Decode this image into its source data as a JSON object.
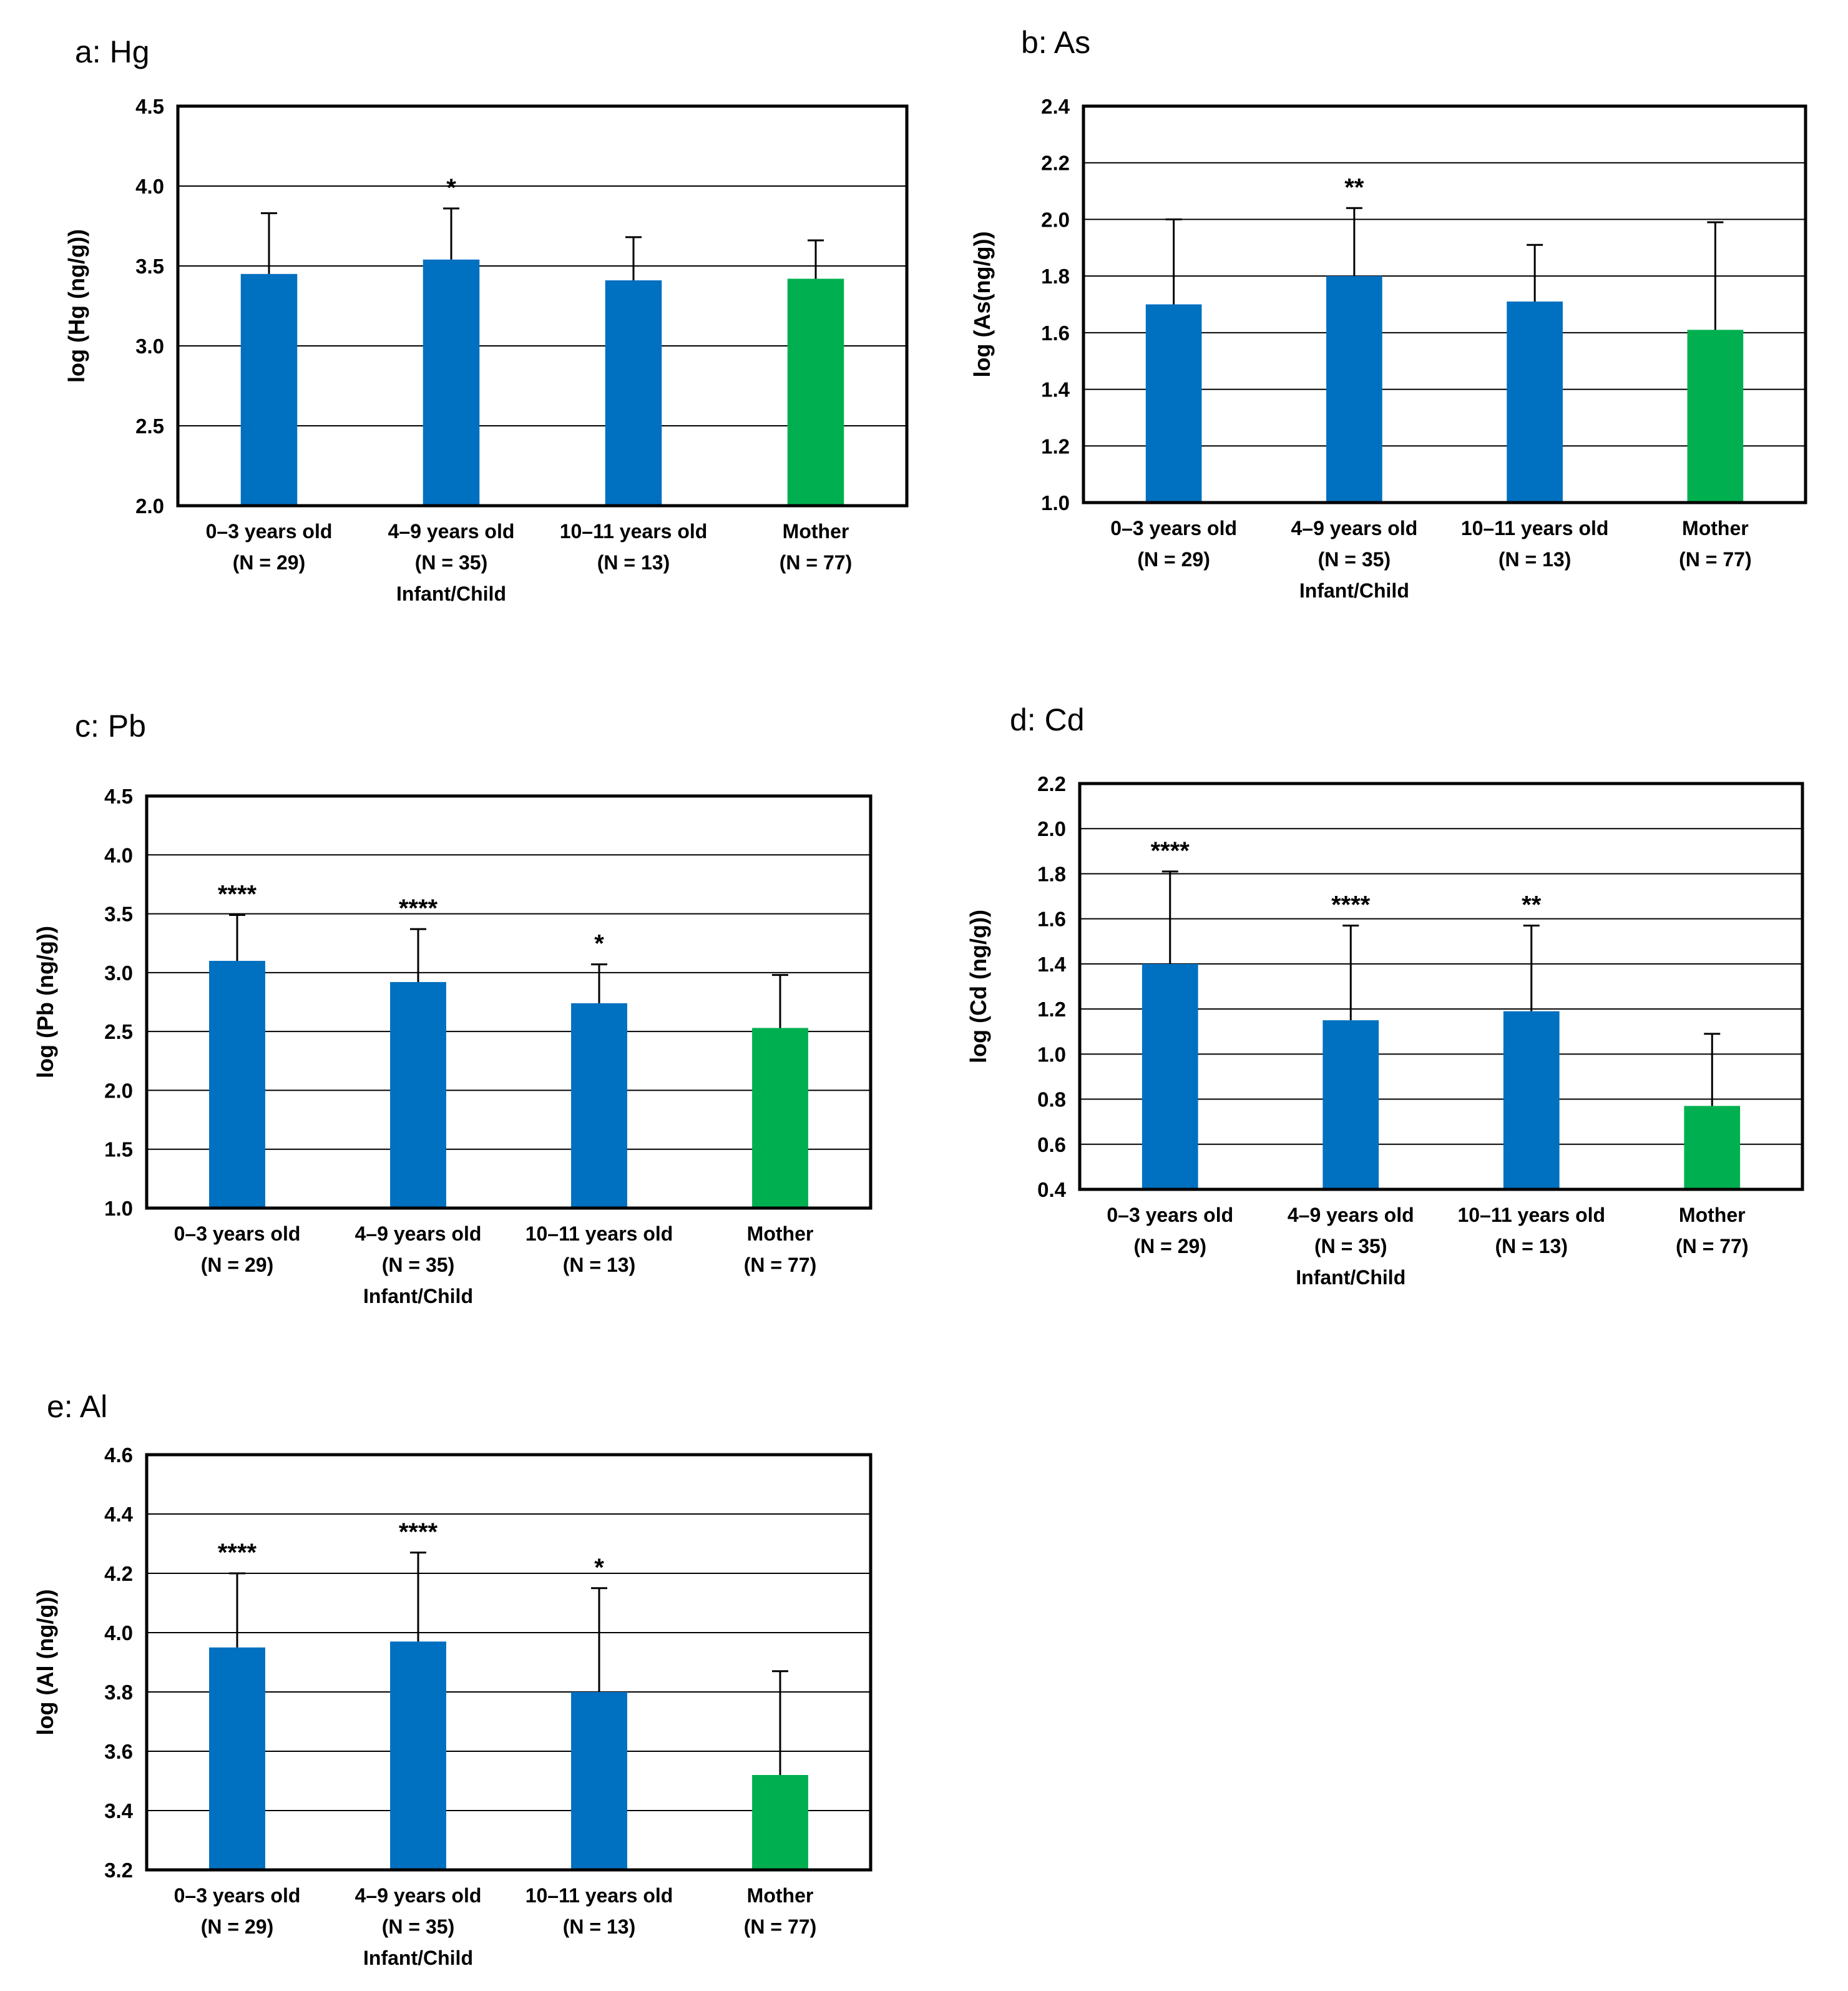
{
  "figure": {
    "group_label": "Infant/Child",
    "colors": {
      "child": "#0070C0",
      "mother": "#00B050",
      "error_bar": "#000000",
      "grid": "#000000"
    }
  },
  "chart_data": [
    {
      "id": "hg",
      "type": "bar",
      "title": "a: Hg",
      "ylabel": "log (Hg (ng/g))",
      "ylim": [
        2.0,
        4.5
      ],
      "yticks": [
        "2.0",
        "2.5",
        "3.0",
        "3.5",
        "4.0",
        "4.5"
      ],
      "categories": [
        {
          "label": "0–3 years old",
          "n": "(N = 29)"
        },
        {
          "label": "4–9 years old",
          "n": "(N = 35)"
        },
        {
          "label": "10–11 years old",
          "n": "(N = 13)"
        },
        {
          "label": "Mother",
          "n": "(N = 77)"
        }
      ],
      "values": [
        3.45,
        3.54,
        3.41,
        3.42
      ],
      "errors": [
        0.38,
        0.32,
        0.27,
        0.24
      ],
      "significance": [
        "",
        "*",
        "",
        ""
      ],
      "group_label": "Infant/Child"
    },
    {
      "id": "as",
      "type": "bar",
      "title": "b: As",
      "ylabel": "log (As(ng/g))",
      "ylim": [
        1.0,
        2.4
      ],
      "yticks": [
        "1.0",
        "1.2",
        "1.4",
        "1.6",
        "1.8",
        "2.0",
        "2.2",
        "2.4"
      ],
      "categories": [
        {
          "label": "0–3 years old",
          "n": "(N = 29)"
        },
        {
          "label": "4–9 years old",
          "n": "(N = 35)"
        },
        {
          "label": "10–11 years old",
          "n": "(N = 13)"
        },
        {
          "label": "Mother",
          "n": "(N = 77)"
        }
      ],
      "values": [
        1.7,
        1.8,
        1.71,
        1.61
      ],
      "errors": [
        0.3,
        0.24,
        0.2,
        0.38
      ],
      "significance": [
        "",
        "**",
        "",
        ""
      ],
      "group_label": "Infant/Child"
    },
    {
      "id": "pb",
      "type": "bar",
      "title": "c: Pb",
      "ylabel": "log (Pb (ng/g))",
      "ylim": [
        1.0,
        4.5
      ],
      "yticks": [
        "1.0",
        "1.5",
        "2.0",
        "2.5",
        "3.0",
        "3.5",
        "4.0",
        "4.5"
      ],
      "categories": [
        {
          "label": "0–3 years old",
          "n": "(N = 29)"
        },
        {
          "label": "4–9 years old",
          "n": "(N = 35)"
        },
        {
          "label": "10–11 years old",
          "n": "(N = 13)"
        },
        {
          "label": "Mother",
          "n": "(N = 77)"
        }
      ],
      "values": [
        3.1,
        2.92,
        2.74,
        2.53
      ],
      "errors": [
        0.39,
        0.45,
        0.33,
        0.45
      ],
      "significance": [
        "****",
        "****",
        "*",
        ""
      ],
      "group_label": "Infant/Child"
    },
    {
      "id": "cd",
      "type": "bar",
      "title": "d: Cd",
      "ylabel": "log (Cd (ng/g))",
      "ylim": [
        0.4,
        2.2
      ],
      "yticks": [
        "0.4",
        "0.6",
        "0.8",
        "1.0",
        "1.2",
        "1.4",
        "1.6",
        "1.8",
        "2.0",
        "2.2"
      ],
      "categories": [
        {
          "label": "0–3 years old",
          "n": "(N = 29)"
        },
        {
          "label": "4–9 years old",
          "n": "(N = 35)"
        },
        {
          "label": "10–11 years old",
          "n": "(N = 13)"
        },
        {
          "label": "Mother",
          "n": "(N = 77)"
        }
      ],
      "values": [
        1.4,
        1.15,
        1.19,
        0.77
      ],
      "errors": [
        0.41,
        0.42,
        0.38,
        0.32
      ],
      "significance": [
        "****",
        "****",
        "**",
        ""
      ],
      "group_label": "Infant/Child"
    },
    {
      "id": "al",
      "type": "bar",
      "title": "e: Al",
      "ylabel": "log (Al (ng/g))",
      "ylim": [
        3.2,
        4.6
      ],
      "yticks": [
        "3.2",
        "3.4",
        "3.6",
        "3.8",
        "4.0",
        "4.2",
        "4.4",
        "4.6"
      ],
      "categories": [
        {
          "label": "0–3 years old",
          "n": "(N = 29)"
        },
        {
          "label": "4–9 years old",
          "n": "(N = 35)"
        },
        {
          "label": "10–11 years old",
          "n": "(N = 13)"
        },
        {
          "label": "Mother",
          "n": "(N = 77)"
        }
      ],
      "values": [
        3.95,
        3.97,
        3.8,
        3.52
      ],
      "errors": [
        0.25,
        0.3,
        0.35,
        0.35
      ],
      "significance": [
        "****",
        "****",
        "*",
        ""
      ],
      "group_label": "Infant/Child"
    }
  ]
}
